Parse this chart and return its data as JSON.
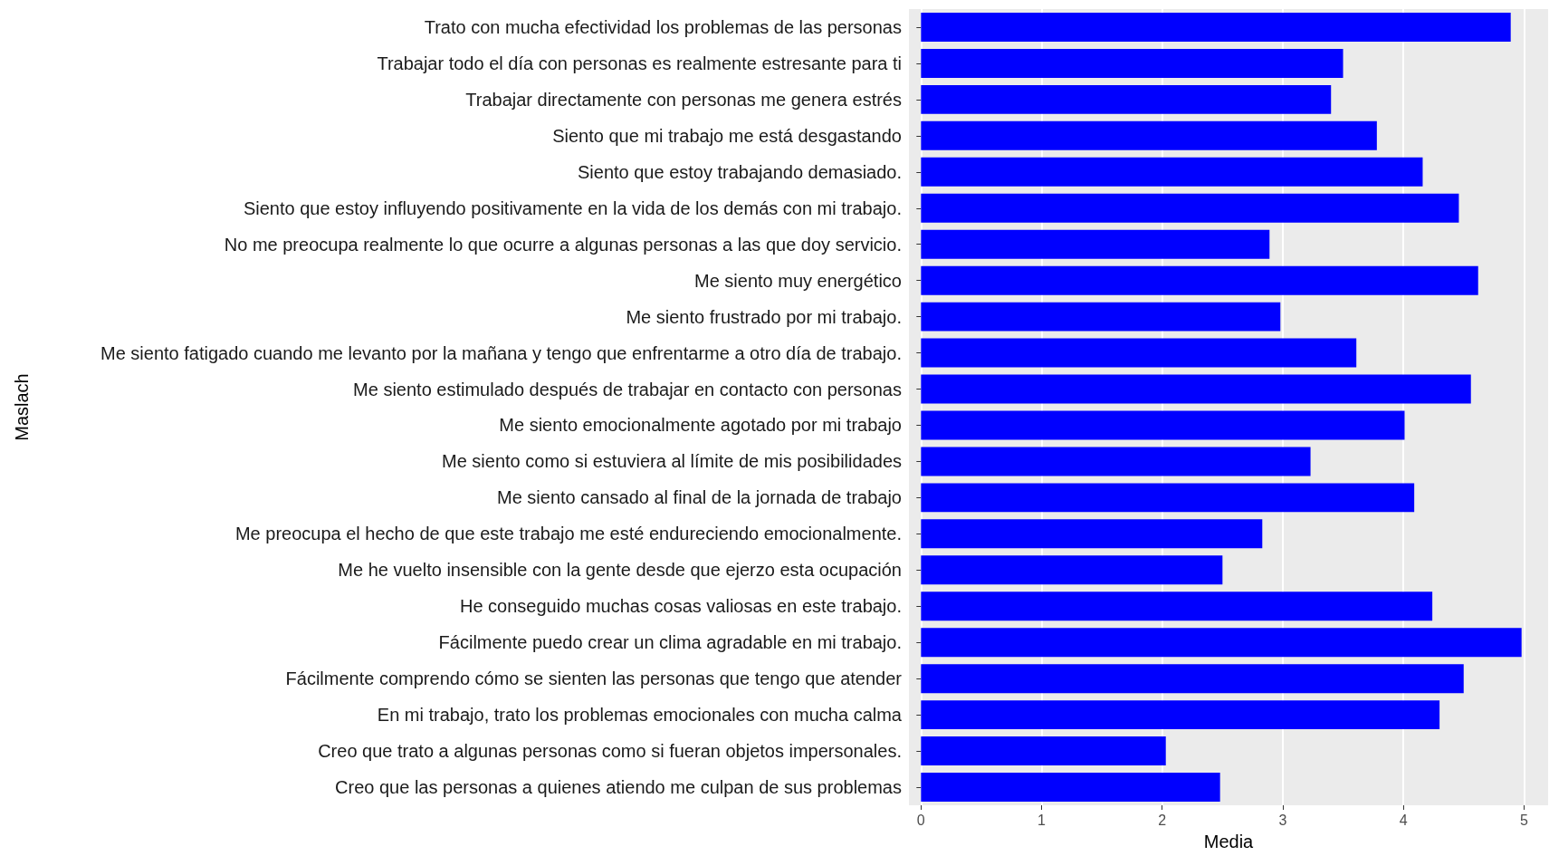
{
  "chart_data": {
    "type": "bar",
    "orientation": "horizontal",
    "xlabel": "Media",
    "ylabel": "Maslach",
    "categories": [
      "Trato con mucha efectividad los problemas de las personas",
      "Trabajar todo el día con personas es realmente estresante para ti",
      "Trabajar directamente con personas me genera estrés",
      "Siento que mi trabajo me está desgastando",
      "Siento que estoy trabajando demasiado.",
      "Siento que estoy influyendo positivamente en la vida de los demás con mi trabajo.",
      "No me preocupa realmente lo que ocurre a algunas personas a las que doy servicio.",
      "Me siento muy energético",
      "Me siento frustrado por mi trabajo.",
      "Me siento fatigado cuando me levanto por la mañana y tengo que enfrentarme a otro día de trabajo.",
      "Me siento estimulado después de trabajar en contacto con personas",
      "Me siento emocionalmente agotado por mi trabajo",
      "Me siento como si estuviera al límite de mis posibilidades",
      "Me siento cansado al final de la jornada de trabajo",
      "Me preocupa el hecho de que este trabajo me esté endureciendo emocionalmente.",
      "Me he vuelto insensible con la gente desde que ejerzo esta ocupación",
      "He conseguido muchas cosas valiosas en este trabajo.",
      "Fácilmente puedo crear un clima agradable en mi trabajo.",
      "Fácilmente comprendo cómo se sienten las personas que tengo que atender",
      "En mi trabajo, trato los problemas emocionales con mucha calma",
      "Creo que trato a algunas personas como si fueran objetos impersonales.",
      "Creo que las personas a quienes atiendo me culpan de sus problemas"
    ],
    "values": [
      4.89,
      3.5,
      3.4,
      3.78,
      4.16,
      4.46,
      2.89,
      4.62,
      2.98,
      3.61,
      4.56,
      4.01,
      3.23,
      4.09,
      2.83,
      2.5,
      4.24,
      4.98,
      4.5,
      4.3,
      2.03,
      2.48
    ],
    "color": "#0000ff",
    "xlim": [
      -0.1,
      5.2
    ],
    "xticks": [
      0,
      1,
      2,
      3,
      4,
      5
    ],
    "grid": "x"
  }
}
